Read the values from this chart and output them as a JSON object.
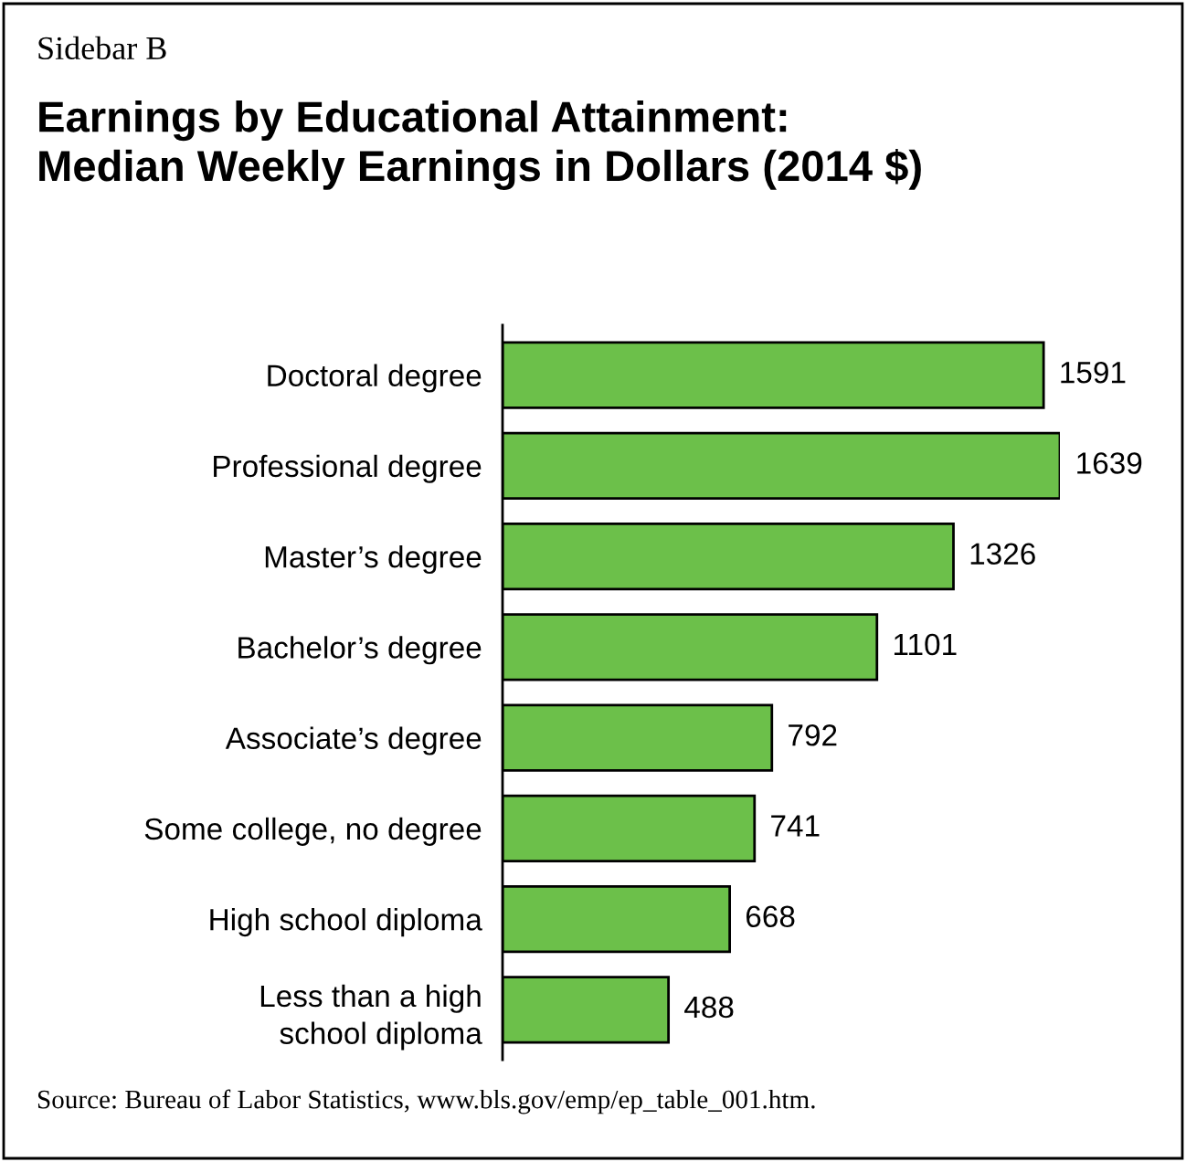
{
  "chart_data": {
    "type": "bar",
    "orientation": "horizontal",
    "title": "Earnings by Educational Attainment:\nMedian Weekly Earnings in Dollars (2014 $)",
    "subtitle": "Sidebar B",
    "categories": [
      "Doctoral degree",
      "Professional degree",
      "Master’s degree",
      "Bachelor’s degree",
      "Associate’s degree",
      "Some college, no degree",
      "High school diploma",
      "Less than a high\nschool diploma"
    ],
    "values": [
      1591,
      1639,
      1326,
      1101,
      792,
      741,
      668,
      488
    ],
    "color": "#6cc04a",
    "data_labels": true,
    "grid": false,
    "legend": false,
    "tick_labels": "y",
    "annotations": [
      "Source: Bureau of Labor Statistics, www.bls.gov/emp/ep_table_001.htm."
    ]
  }
}
